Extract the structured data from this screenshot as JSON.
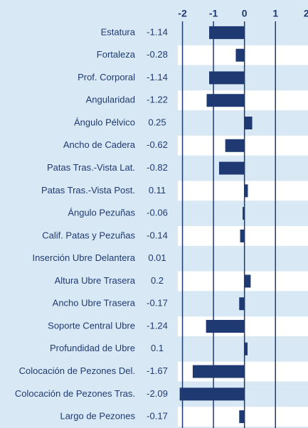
{
  "chart_data": {
    "type": "barh",
    "categories": [
      "Estatura",
      "Fortaleza",
      "Prof. Corporal",
      "Angularidad",
      "Ángulo Pélvico",
      "Ancho de Cadera",
      "Patas Tras.-Vista Lat.",
      "Patas Tras.-Vista Post.",
      "Ángulo Pezuñas",
      "Calif. Patas y Pezuñas",
      "Inserción Ubre Delantera",
      "Altura Ubre Trasera",
      "Ancho Ubre Trasera",
      "Soporte Central Ubre",
      "Profundidad de Ubre",
      "Colocación de Pezones Del.",
      "Colocación de Pezones Tras.",
      "Largo de Pezones"
    ],
    "values": [
      -1.14,
      -0.28,
      -1.14,
      -1.22,
      0.25,
      -0.62,
      -0.82,
      0.11,
      -0.06,
      -0.14,
      0.01,
      0.2,
      -0.17,
      -1.24,
      0.1,
      -1.67,
      -2.09,
      -0.17
    ],
    "color": "#1f3a72",
    "xlim": [
      -2.15,
      2.05
    ],
    "xticks": [
      -2,
      -1,
      0,
      1,
      2
    ],
    "grid": true
  }
}
